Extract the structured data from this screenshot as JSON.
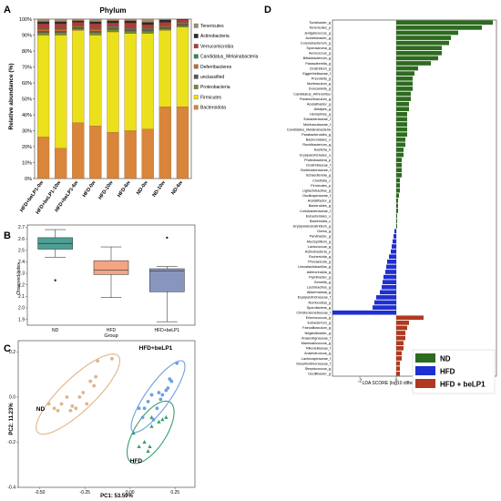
{
  "panels": {
    "a": "A",
    "b": "B",
    "c": "C",
    "d": "D"
  },
  "chart_data": [
    {
      "type": "bar",
      "stacked": true,
      "title": "Phylum",
      "ylabel": "Relative abundance (%)",
      "ylim": [
        0,
        100
      ],
      "yticks": [
        "0%",
        "10%",
        "20%",
        "30%",
        "40%",
        "50%",
        "60%",
        "70%",
        "80%",
        "90%",
        "100%"
      ],
      "categories": [
        "HFD+beLP1-0w",
        "HFD+beLP1-10w",
        "HFD+beLP1-6w",
        "HFD-0w",
        "HFD-10w",
        "HFD-6w",
        "ND-0w",
        "ND-10w",
        "ND-6w"
      ],
      "legend_position": "right",
      "series": [
        {
          "name": "Bacteroidota",
          "color": "#d9853a",
          "values": [
            26,
            19,
            35,
            33,
            29,
            30,
            31,
            45,
            45
          ]
        },
        {
          "name": "Firmicutes",
          "color": "#ebe01c",
          "values": [
            64,
            71,
            58,
            57,
            63,
            61,
            60,
            48,
            50
          ]
        },
        {
          "name": "Proteobacteria",
          "color": "#6f8f2e",
          "values": [
            1.5,
            1.5,
            1,
            1.5,
            1.5,
            1.5,
            1.5,
            1,
            1
          ]
        },
        {
          "name": "unclassified",
          "color": "#565656",
          "values": [
            1,
            1,
            1,
            1,
            1,
            1,
            1,
            1,
            1
          ]
        },
        {
          "name": "Deferribacteres",
          "color": "#c06a30",
          "values": [
            1,
            1,
            0.5,
            1,
            0.5,
            0.5,
            0.5,
            0.5,
            0.5
          ]
        },
        {
          "name": "Candidatus_Melainabacteria",
          "color": "#2e8b57",
          "values": [
            0.5,
            0.5,
            0.5,
            0.5,
            0.5,
            0.5,
            0.5,
            0.5,
            0.5
          ]
        },
        {
          "name": "Verrucomicrobia",
          "color": "#b23a3a",
          "values": [
            3,
            3,
            2,
            3,
            2,
            3,
            2,
            2,
            1.5
          ]
        },
        {
          "name": "Actinobacteria",
          "color": "#2a2a2a",
          "values": [
            1.5,
            1.5,
            1,
            1.5,
            1.5,
            1.5,
            1.5,
            1.5,
            0.5
          ]
        },
        {
          "name": "Tenericutes",
          "color": "#a48c6a",
          "values": [
            1.5,
            1.5,
            1,
            1.5,
            1,
            1,
            2,
            0.5,
            0
          ]
        }
      ]
    },
    {
      "type": "box",
      "ylabel": "Observed Index",
      "xlabel": "Group",
      "ylim": [
        1.85,
        2.72
      ],
      "yticks": [
        "1.9",
        "2.0",
        "2.1",
        "2.2",
        "2.3",
        "2.4",
        "2.5",
        "2.6",
        "2.7"
      ],
      "categories": [
        "ND",
        "HFD",
        "HFD+beLP1"
      ],
      "boxes": [
        {
          "group": "ND",
          "color": "#4e9f94",
          "min": 2.44,
          "q1": 2.51,
          "median": 2.56,
          "q3": 2.61,
          "max": 2.68,
          "outliers": [
            2.24
          ]
        },
        {
          "group": "HFD",
          "color": "#f4a582",
          "min": 2.09,
          "q1": 2.29,
          "median": 2.33,
          "q3": 2.41,
          "max": 2.53,
          "outliers": []
        },
        {
          "group": "HFD+beLP1",
          "color": "#8896be",
          "min": 1.88,
          "q1": 2.14,
          "median": 2.32,
          "q3": 2.34,
          "max": 2.36,
          "outliers": [
            2.61
          ]
        }
      ]
    },
    {
      "type": "scatter",
      "xlabel": "PC1: 53.59%",
      "ylabel": "PC2: 11.23%",
      "xlim": [
        -0.62,
        0.36
      ],
      "ylim": [
        -0.4,
        0.25
      ],
      "xticks": [
        "-0.50",
        "-0.25",
        "0.00",
        "0.25"
      ],
      "yticks": [
        "-0.4",
        "-0.2",
        "0.0",
        "0.2"
      ],
      "series": [
        {
          "name": "ND",
          "color": "#e0b48a",
          "points": [
            [
              -0.45,
              -0.03
            ],
            [
              -0.42,
              -0.05
            ],
            [
              -0.4,
              -0.06
            ],
            [
              -0.38,
              -0.03
            ],
            [
              -0.35,
              0.0
            ],
            [
              -0.33,
              -0.06
            ],
            [
              -0.32,
              -0.04
            ],
            [
              -0.3,
              -0.05
            ],
            [
              -0.28,
              0.0
            ],
            [
              -0.26,
              0.02
            ],
            [
              -0.24,
              -0.03
            ],
            [
              -0.22,
              0.07
            ],
            [
              -0.2,
              0.05
            ],
            [
              -0.19,
              0.09
            ],
            [
              -0.18,
              0.16
            ],
            [
              -0.1,
              0.17
            ]
          ]
        },
        {
          "name": "HFD",
          "color": "#3a9e6e",
          "points": [
            [
              0.02,
              -0.16
            ],
            [
              0.05,
              -0.22
            ],
            [
              0.08,
              -0.2
            ],
            [
              0.1,
              -0.24
            ],
            [
              0.11,
              -0.22
            ],
            [
              0.12,
              -0.13
            ],
            [
              0.12,
              -0.09
            ],
            [
              0.16,
              -0.11
            ],
            [
              0.18,
              -0.1
            ],
            [
              0.2,
              -0.09
            ]
          ]
        },
        {
          "name": "HFD+beLP1",
          "color": "#6f9fe0",
          "points": [
            [
              0.05,
              -0.05
            ],
            [
              0.07,
              -0.09
            ],
            [
              0.08,
              -0.05
            ],
            [
              0.1,
              -0.02
            ],
            [
              0.12,
              0.01
            ],
            [
              0.13,
              -0.1
            ],
            [
              0.15,
              -0.05
            ],
            [
              0.16,
              0.02
            ],
            [
              0.17,
              -0.01
            ],
            [
              0.18,
              0.01
            ],
            [
              0.2,
              0.03
            ],
            [
              0.21,
              0.04
            ],
            [
              0.22,
              0.08
            ],
            [
              0.23,
              0.07
            ],
            [
              0.26,
              0.15
            ]
          ]
        }
      ],
      "annotations": [
        "ND",
        "HFD",
        "HFD+beLP1"
      ]
    },
    {
      "type": "bar",
      "orientation": "horizontal",
      "xlabel": "LDA SCORE (log10 difference)",
      "xlim": [
        -3.5,
        5.5
      ],
      "xticks": [
        "-2",
        "0",
        "2",
        "4"
      ],
      "legend": [
        {
          "name": "ND",
          "color": "#2d6b1f"
        },
        {
          "name": "HFD",
          "color": "#1f2fd1"
        },
        {
          "name": "HFD + beLP1",
          "color": "#b0391f"
        }
      ],
      "legend_position": "bottom-right",
      "categories": [
        "Turicibacter_g",
        "Tenericutes_p",
        "Jeotgalicoccus_g",
        "Acinetobacter_g",
        "Corynebacterium_g",
        "Sporosarcina_g",
        "Aerococcus_g",
        "Bifidobacterium_g",
        "Parasutterella_g",
        "Clostridium_g",
        "Eggerthellaceae_f",
        "Prevotella_g",
        "Muribaculum_g",
        "Duncaniella_g",
        "Candidatus_Arthromitus",
        "Paramuribaculum_g",
        "Acutalibacter_g",
        "Alistipes_g",
        "Hemiphilus_g",
        "Eubacteriaceae_f",
        "Muribaculaceae_f",
        "Candidatus_Melainabacteria",
        "Parabacteroides_g",
        "Bacteroidales_o",
        "Rumiibacterium_g",
        "Bacteria_k",
        "Erysipelotrichales_o",
        "Proteobacteria_p",
        "Clostridiaceae_f",
        "Burkholderiaceae_f",
        "Schaedlerella_g",
        "Clostridia_c",
        "Firmicutes_p",
        "Ligilactobacillus_g",
        "Oscillospiraceae_f",
        "Acetatifactor_g",
        "Bacteroides_g",
        "Coriobacteriaceae_f",
        "Eubacteriales_o",
        "Bacteroidia_c",
        "Erysipelatoclostridium_g",
        "Dorea_g",
        "Parvibacter_g",
        "Mucispirillum_g",
        "Lactococcus_g",
        "Actinobacteria_p",
        "Escherichia_g",
        "Phocaeicola_g",
        "Limosilactobacillus_g",
        "Adlercreutzia_g",
        "Flymibacter_g",
        "Gemella_g",
        "Lactobacillus_g",
        "Akkermansia_g",
        "Erysipelotrichaceae_f",
        "Romboutsia_g",
        "Sporofaciens_g",
        "Christensenellaceae_f",
        "Enterococcus_g",
        "Eubacterium_g",
        "Faecalibaculum_g",
        "Neglectibacter_g",
        "Anaerotignaceae_f",
        "Mammaliicoccus_g",
        "Rikenellaceae_f",
        "Anaerotruncus_g",
        "Lachnospiraceae_f",
        "Desulfovibrionaceae_f",
        "Streptococcus_g",
        "Oscillibacter_g"
      ],
      "groups": [
        "ND",
        "ND",
        "ND",
        "ND",
        "ND",
        "ND",
        "ND",
        "ND",
        "ND",
        "ND",
        "ND",
        "ND",
        "ND",
        "ND",
        "ND",
        "ND",
        "ND",
        "ND",
        "ND",
        "ND",
        "ND",
        "ND",
        "ND",
        "ND",
        "ND",
        "ND",
        "ND",
        "ND",
        "ND",
        "ND",
        "ND",
        "ND",
        "ND",
        "ND",
        "ND",
        "ND",
        "ND",
        "ND",
        "ND",
        "ND",
        "ND",
        "HFD",
        "HFD",
        "HFD",
        "HFD",
        "HFD",
        "HFD",
        "HFD",
        "HFD",
        "HFD",
        "HFD",
        "HFD",
        "HFD",
        "HFD",
        "HFD",
        "HFD",
        "HFD",
        "HFD",
        "HFD+beLP1",
        "HFD+beLP1",
        "HFD+beLP1",
        "HFD+beLP1",
        "HFD+beLP1",
        "HFD+beLP1",
        "HFD+beLP1",
        "HFD+beLP1",
        "HFD+beLP1",
        "HFD+beLP1",
        "HFD+beLP1",
        "HFD+beLP1"
      ],
      "values": [
        5.3,
        4.7,
        3.4,
        3.0,
        2.9,
        2.5,
        2.5,
        2.3,
        1.9,
        1.2,
        1.0,
        0.9,
        0.9,
        0.9,
        0.8,
        0.8,
        0.7,
        0.7,
        0.6,
        0.6,
        0.6,
        0.6,
        0.6,
        0.5,
        0.5,
        0.4,
        0.4,
        0.3,
        0.3,
        0.3,
        0.3,
        0.2,
        0.2,
        0.2,
        0.15,
        0.1,
        0.1,
        0.1,
        0.05,
        0.05,
        0.05,
        -0.1,
        -0.15,
        -0.2,
        -0.25,
        -0.3,
        -0.4,
        -0.5,
        -0.55,
        -0.6,
        -0.7,
        -0.75,
        -0.8,
        -0.9,
        -1.1,
        -1.2,
        -1.3,
        -3.5,
        1.5,
        0.7,
        0.6,
        0.5,
        0.5,
        0.4,
        0.4,
        0.3,
        0.3,
        0.2,
        0.2,
        0.2
      ]
    }
  ]
}
